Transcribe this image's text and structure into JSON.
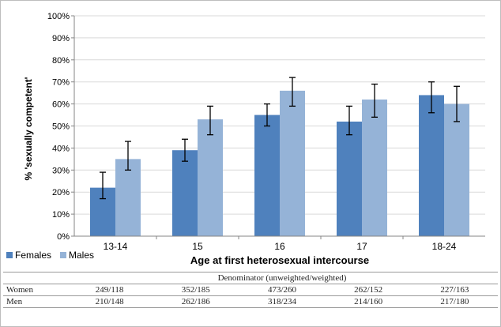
{
  "chart_data": {
    "type": "bar",
    "ylabel": "% 'sexually competent'",
    "xlabel": "Age at first heterosexual intercourse",
    "categories": [
      "13-14",
      "15",
      "16",
      "17",
      "18-24"
    ],
    "yticks": [
      "0%",
      "10%",
      "20%",
      "30%",
      "40%",
      "50%",
      "60%",
      "70%",
      "80%",
      "90%",
      "100%"
    ],
    "ylim": [
      0,
      100
    ],
    "legend_position": "bottom-left",
    "series": [
      {
        "name": "Females",
        "color": "#4f81bd",
        "values": [
          22,
          39,
          55,
          52,
          64
        ],
        "err_low": [
          17,
          34,
          50,
          46,
          56
        ],
        "err_high": [
          29,
          44,
          60,
          59,
          70
        ]
      },
      {
        "name": "Males",
        "color": "#95b3d7",
        "values": [
          35,
          53,
          66,
          62,
          60
        ],
        "err_low": [
          30,
          46,
          59,
          54,
          52
        ],
        "err_high": [
          43,
          59,
          72,
          69,
          68
        ]
      }
    ]
  },
  "table": {
    "header": "Denominator (unweighted/weighted)",
    "rows": [
      {
        "label": "Women",
        "values": [
          "249/118",
          "352/185",
          "473/260",
          "262/152",
          "227/163"
        ]
      },
      {
        "label": "Men",
        "values": [
          "210/148",
          "262/186",
          "318/234",
          "214/160",
          "217/180"
        ]
      }
    ]
  }
}
